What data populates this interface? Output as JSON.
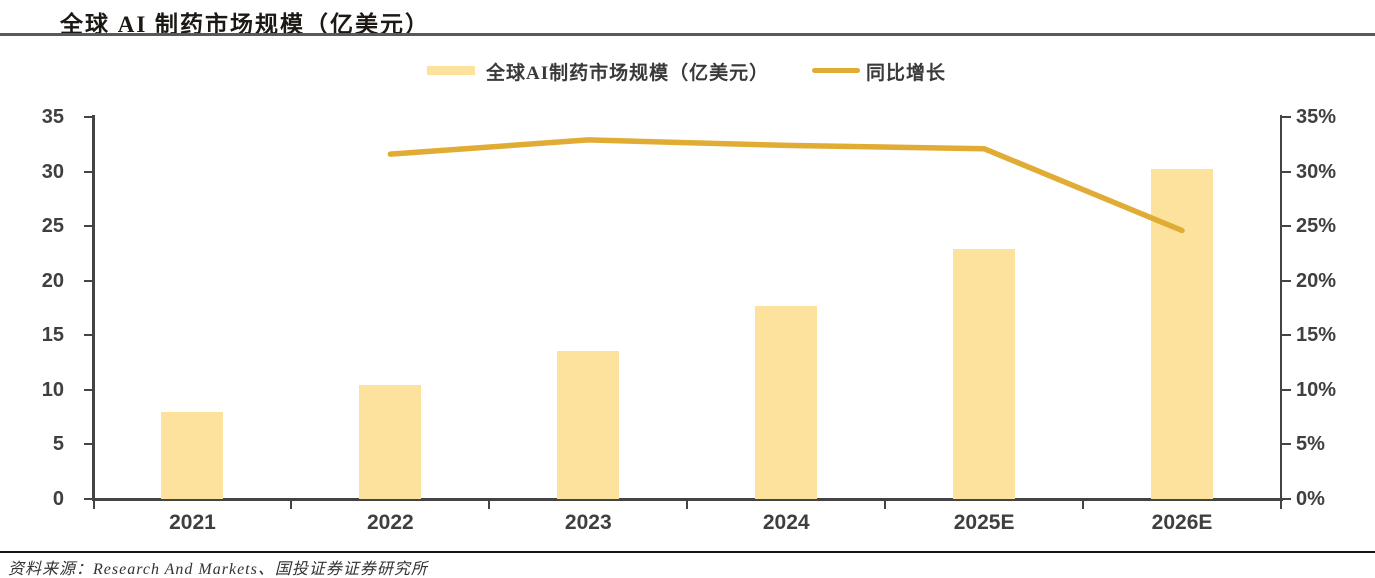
{
  "title": "全球 AI 制药市场规模（亿美元）",
  "source": "资料来源：Research And Markets、国投证券证券研究所",
  "legend": [
    {
      "label": "全球AI制药市场规模（亿美元）",
      "marker": "bar-swatch"
    },
    {
      "label": "同比增长",
      "marker": "line-swatch"
    }
  ],
  "colors": {
    "bar": "#FCE29C",
    "line": "#E0AC33",
    "axis": "#444444",
    "tick_text": "#3F3F3F",
    "title_rule": "#595959",
    "footer_rule": "#141414"
  },
  "chart_data": {
    "type": "bar",
    "categories": [
      "2021",
      "2022",
      "2023",
      "2024",
      "2025E",
      "2026E"
    ],
    "series": [
      {
        "name": "全球AI制药市场规模（亿美元）",
        "type": "bar",
        "axis": "left",
        "values": [
          8.0,
          10.4,
          13.6,
          17.7,
          22.9,
          30.2
        ]
      },
      {
        "name": "同比增长",
        "type": "line",
        "axis": "right",
        "unit": "%",
        "values": [
          null,
          31.6,
          32.9,
          32.4,
          32.1,
          24.6
        ]
      }
    ],
    "left_axis": {
      "min": 0,
      "max": 35,
      "step": 5,
      "ticks": [
        "0",
        "5",
        "10",
        "15",
        "20",
        "25",
        "30",
        "35"
      ]
    },
    "right_axis": {
      "min": 0,
      "max": 35,
      "step": 5,
      "ticks": [
        "0%",
        "5%",
        "10%",
        "15%",
        "20%",
        "25%",
        "30%",
        "35%"
      ]
    },
    "grid": false,
    "legend_position": "top"
  }
}
